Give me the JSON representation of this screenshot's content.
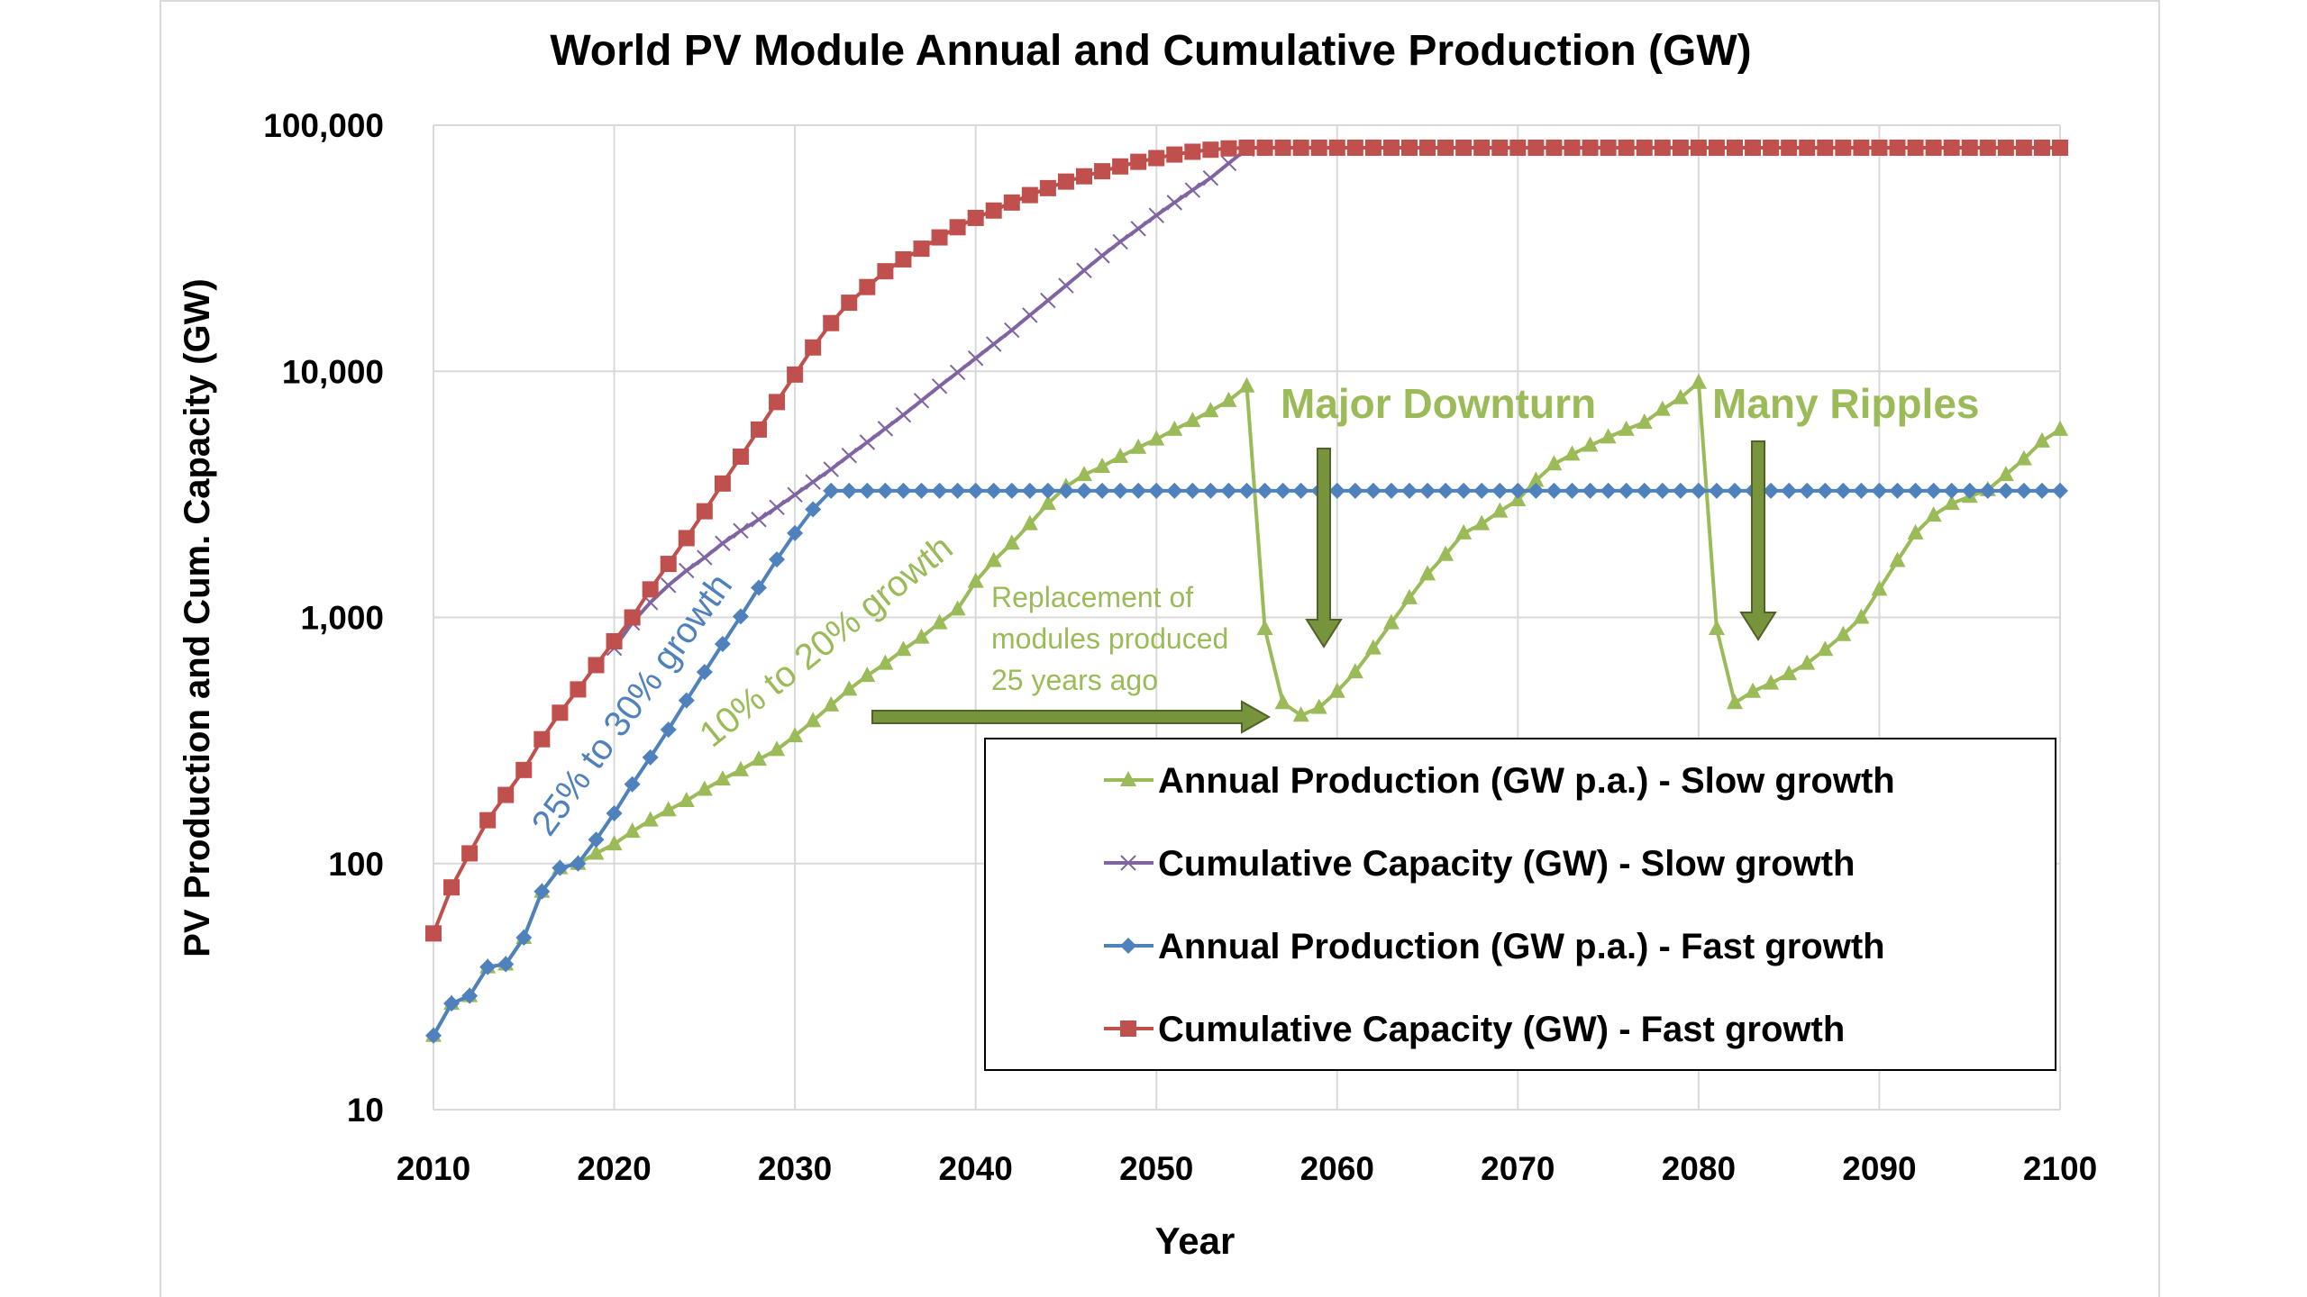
{
  "chart_data": {
    "type": "line",
    "title": "World PV Module Annual and Cumulative Production (GW)",
    "xlabel": "Year",
    "ylabel": "PV Production and Cum. Capacity (GW)",
    "yscale": "log",
    "ylim": [
      10,
      100000
    ],
    "xlim": [
      2010,
      2100
    ],
    "grid": true,
    "legend_position": "bottom-right",
    "x_ticks": [
      "2010",
      "2020",
      "2030",
      "2040",
      "2050",
      "2060",
      "2070",
      "2080",
      "2090",
      "2100"
    ],
    "y_ticks": [
      "10",
      "100",
      "1,000",
      "10,000",
      "100,000"
    ],
    "series": [
      {
        "name": "Annual Production (GW p.a.) - Slow growth",
        "color": "#9bbb59",
        "marker": "triangle",
        "start": 2010,
        "values": [
          20,
          27,
          29,
          38,
          39,
          50,
          77,
          96,
          100,
          110,
          120,
          135,
          150,
          165,
          180,
          200,
          220,
          240,
          265,
          290,
          330,
          380,
          440,
          510,
          580,
          650,
          740,
          830,
          950,
          1080,
          1400,
          1700,
          2000,
          2400,
          2900,
          3400,
          3800,
          4100,
          4500,
          4900,
          5300,
          5800,
          6300,
          6900,
          7600,
          8700,
          900,
          450,
          400,
          430,
          500,
          600,
          750,
          950,
          1200,
          1500,
          1800,
          2200,
          2400,
          2700,
          3000,
          3600,
          4200,
          4600,
          5000,
          5400,
          5800,
          6200,
          7000,
          7800,
          9000,
          900,
          450,
          500,
          540,
          590,
          650,
          740,
          850,
          1000,
          1300,
          1700,
          2200,
          2600,
          2900,
          3100,
          3300,
          3800,
          4400,
          5200,
          5800
        ]
      },
      {
        "name": "Cumulative Capacity (GW) - Slow growth",
        "color": "#8064a2",
        "marker": "x",
        "start": 2020,
        "values": [
          750,
          950,
          1150,
          1350,
          1550,
          1750,
          2000,
          2250,
          2500,
          2800,
          3150,
          3550,
          4000,
          4550,
          5150,
          5850,
          6650,
          7600,
          8700,
          9900,
          11300,
          12900,
          14700,
          16900,
          19400,
          22300,
          25700,
          29500,
          33600,
          38000,
          43000,
          48500,
          54500,
          61000,
          70000,
          80000
        ]
      },
      {
        "name": "Annual Production (GW p.a.) - Fast growth",
        "color": "#4f81bd",
        "marker": "diamond",
        "start": 2010,
        "values": [
          20,
          27,
          29,
          38,
          39,
          50,
          77,
          96,
          100,
          125,
          160,
          210,
          270,
          350,
          460,
          600,
          780,
          1010,
          1320,
          1720,
          2200,
          2750,
          3270,
          3270,
          3270,
          3270,
          3270,
          3270,
          3270,
          3270,
          3270,
          3270,
          3270,
          3270,
          3270,
          3270,
          3270,
          3270,
          3270,
          3270,
          3270,
          3270,
          3270,
          3270,
          3270,
          3270,
          3270,
          3270,
          3270,
          3270,
          3270,
          3270,
          3270,
          3270,
          3270,
          3270,
          3270,
          3270,
          3270,
          3270,
          3270,
          3270,
          3270,
          3270,
          3270,
          3270,
          3270,
          3270,
          3270,
          3270,
          3270,
          3270,
          3270,
          3270,
          3270,
          3270,
          3270,
          3270,
          3270,
          3270,
          3270,
          3270,
          3270,
          3270,
          3270,
          3270,
          3270,
          3270,
          3270,
          3270,
          3270
        ]
      },
      {
        "name": "Cumulative Capacity (GW) - Fast growth",
        "color": "#c0504d",
        "marker": "square",
        "start": 2010,
        "values": [
          52,
          80,
          110,
          150,
          190,
          240,
          320,
          410,
          510,
          640,
          800,
          1000,
          1300,
          1650,
          2100,
          2700,
          3500,
          4500,
          5800,
          7500,
          9700,
          12500,
          15700,
          19000,
          22000,
          25500,
          28500,
          31500,
          35000,
          38500,
          42000,
          45000,
          48500,
          52000,
          55500,
          59000,
          62000,
          65000,
          68000,
          71000,
          73500,
          76000,
          78000,
          79500,
          80500,
          81000,
          81000,
          81000,
          81000,
          81000,
          81000,
          81000,
          81000,
          81000,
          81000,
          81000,
          81000,
          81000,
          81000,
          81000,
          81000,
          81000,
          81000,
          81000,
          81000,
          81000,
          81000,
          81000,
          81000,
          81000,
          81000,
          81000,
          81000,
          81000,
          81000,
          81000,
          81000,
          81000,
          81000,
          81000,
          81000,
          81000,
          81000,
          81000,
          81000,
          81000,
          81000,
          81000,
          81000,
          81000,
          81000
        ]
      }
    ],
    "annotations": {
      "downturn": "Major Downturn",
      "ripples": "Many Ripples",
      "replacement": [
        "Replacement of",
        "modules produced",
        "25 years ago"
      ],
      "fast_growth": "25% to 30% growth",
      "slow_growth": "10% to 20% growth"
    }
  }
}
